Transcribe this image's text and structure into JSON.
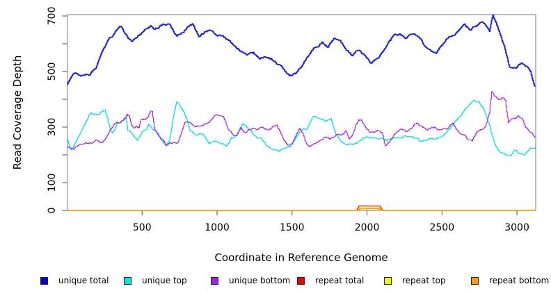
{
  "chart_data": {
    "type": "line",
    "title": "",
    "xlabel": "Coordinate in Reference Genome",
    "ylabel": "Read Coverage Depth",
    "xlim": [
      0,
      3125
    ],
    "ylim": [
      0,
      705
    ],
    "x_ticks": [
      500,
      1000,
      1500,
      2000,
      2500,
      3000
    ],
    "y_ticks": [
      0,
      100,
      200,
      300,
      400,
      500,
      600,
      700
    ],
    "y_tick_labels": [
      "0",
      "100",
      "",
      "300",
      "",
      "500",
      "",
      "700"
    ],
    "grid": false,
    "legend_position": "bottom",
    "box_color": "#7a7a7a",
    "tick_color": "#444444",
    "series": [
      {
        "name": "unique total",
        "swatch_color": "#0000e0",
        "line_color": "#1a1ae0",
        "line_width": 1.7,
        "noise": 7,
        "seed": 7,
        "points": [
          [
            0,
            455
          ],
          [
            40,
            500
          ],
          [
            90,
            490
          ],
          [
            140,
            495
          ],
          [
            190,
            510
          ],
          [
            230,
            560
          ],
          [
            280,
            610
          ],
          [
            330,
            645
          ],
          [
            357,
            657
          ],
          [
            390,
            630
          ],
          [
            431,
            607
          ],
          [
            470,
            630
          ],
          [
            500,
            637
          ],
          [
            530,
            650
          ],
          [
            560,
            660
          ],
          [
            584,
            655
          ],
          [
            620,
            665
          ],
          [
            650,
            672
          ],
          [
            682,
            668
          ],
          [
            728,
            627
          ],
          [
            760,
            640
          ],
          [
            802,
            662
          ],
          [
            835,
            670
          ],
          [
            877,
            620
          ],
          [
            920,
            640
          ],
          [
            960,
            650
          ],
          [
            1000,
            620
          ],
          [
            1040,
            625
          ],
          [
            1080,
            610
          ],
          [
            1120,
            590
          ],
          [
            1160,
            570
          ],
          [
            1200,
            555
          ],
          [
            1240,
            565
          ],
          [
            1280,
            545
          ],
          [
            1320,
            555
          ],
          [
            1360,
            545
          ],
          [
            1400,
            525
          ],
          [
            1440,
            510
          ],
          [
            1480,
            480
          ],
          [
            1520,
            490
          ],
          [
            1560,
            520
          ],
          [
            1600,
            555
          ],
          [
            1650,
            590
          ],
          [
            1700,
            610
          ],
          [
            1740,
            590
          ],
          [
            1780,
            615
          ],
          [
            1820,
            605
          ],
          [
            1860,
            575
          ],
          [
            1900,
            555
          ],
          [
            1940,
            580
          ],
          [
            1980,
            560
          ],
          [
            2020,
            530
          ],
          [
            2060,
            545
          ],
          [
            2100,
            565
          ],
          [
            2140,
            600
          ],
          [
            2180,
            625
          ],
          [
            2220,
            635
          ],
          [
            2260,
            615
          ],
          [
            2300,
            640
          ],
          [
            2340,
            630
          ],
          [
            2380,
            590
          ],
          [
            2420,
            570
          ],
          [
            2460,
            560
          ],
          [
            2500,
            590
          ],
          [
            2540,
            620
          ],
          [
            2570,
            632
          ],
          [
            2610,
            645
          ],
          [
            2650,
            660
          ],
          [
            2690,
            650
          ],
          [
            2720,
            665
          ],
          [
            2770,
            682
          ],
          [
            2816,
            645
          ],
          [
            2839,
            700
          ],
          [
            2870,
            657
          ],
          [
            2915,
            590
          ],
          [
            2950,
            515
          ],
          [
            2990,
            505
          ],
          [
            3030,
            525
          ],
          [
            3065,
            515
          ],
          [
            3090,
            500
          ],
          [
            3110,
            465
          ],
          [
            3121,
            450
          ]
        ]
      },
      {
        "name": "unique top",
        "swatch_color": "#00e5ee",
        "line_color": "#00dcec",
        "line_width": 1.1,
        "noise": 6,
        "seed": 13,
        "points": [
          [
            0,
            255
          ],
          [
            25,
            218
          ],
          [
            60,
            250
          ],
          [
            100,
            290
          ],
          [
            140,
            330
          ],
          [
            158,
            350
          ],
          [
            200,
            340
          ],
          [
            251,
            360
          ],
          [
            283,
            300
          ],
          [
            300,
            280
          ],
          [
            330,
            310
          ],
          [
            360,
            320
          ],
          [
            390,
            330
          ],
          [
            404,
            290
          ],
          [
            435,
            270
          ],
          [
            469,
            252
          ],
          [
            500,
            285
          ],
          [
            529,
            300
          ],
          [
            543,
            312
          ],
          [
            570,
            290
          ],
          [
            589,
            285
          ],
          [
            620,
            260
          ],
          [
            655,
            235
          ],
          [
            680,
            250
          ],
          [
            705,
            330
          ],
          [
            728,
            390
          ],
          [
            745,
            380
          ],
          [
            770,
            360
          ],
          [
            798,
            330
          ],
          [
            815,
            290
          ],
          [
            862,
            277
          ],
          [
            909,
            270
          ],
          [
            945,
            240
          ],
          [
            980,
            250
          ],
          [
            1020,
            240
          ],
          [
            1060,
            232
          ],
          [
            1085,
            255
          ],
          [
            1130,
            270
          ],
          [
            1170,
            310
          ],
          [
            1210,
            290
          ],
          [
            1250,
            265
          ],
          [
            1290,
            255
          ],
          [
            1330,
            230
          ],
          [
            1370,
            222
          ],
          [
            1410,
            212
          ],
          [
            1450,
            225
          ],
          [
            1490,
            230
          ],
          [
            1530,
            260
          ],
          [
            1570,
            290
          ],
          [
            1596,
            290
          ],
          [
            1640,
            335
          ],
          [
            1680,
            330
          ],
          [
            1720,
            325
          ],
          [
            1758,
            330
          ],
          [
            1790,
            275
          ],
          [
            1830,
            250
          ],
          [
            1870,
            245
          ],
          [
            1929,
            237
          ],
          [
            1970,
            260
          ],
          [
            2000,
            265
          ],
          [
            2050,
            265
          ],
          [
            2092,
            262
          ],
          [
            2129,
            248
          ],
          [
            2170,
            255
          ],
          [
            2210,
            262
          ],
          [
            2250,
            270
          ],
          [
            2300,
            268
          ],
          [
            2350,
            248
          ],
          [
            2400,
            252
          ],
          [
            2450,
            258
          ],
          [
            2500,
            262
          ],
          [
            2550,
            290
          ],
          [
            2593,
            325
          ],
          [
            2650,
            360
          ],
          [
            2709,
            395
          ],
          [
            2746,
            390
          ],
          [
            2780,
            360
          ],
          [
            2811,
            315
          ],
          [
            2848,
            245
          ],
          [
            2885,
            212
          ],
          [
            2920,
            200
          ],
          [
            2950,
            198
          ],
          [
            2987,
            215
          ],
          [
            3020,
            205
          ],
          [
            3050,
            200
          ],
          [
            3090,
            220
          ],
          [
            3121,
            228
          ]
        ]
      },
      {
        "name": "unique bottom",
        "swatch_color": "#a020f0",
        "line_color": "#a928ee",
        "line_width": 1.1,
        "noise": 6,
        "seed": 29,
        "points": [
          [
            0,
            230
          ],
          [
            40,
            222
          ],
          [
            80,
            240
          ],
          [
            120,
            245
          ],
          [
            158,
            245
          ],
          [
            190,
            250
          ],
          [
            230,
            248
          ],
          [
            260,
            262
          ],
          [
            306,
            307
          ],
          [
            329,
            320
          ],
          [
            350,
            315
          ],
          [
            375,
            325
          ],
          [
            399,
            345
          ],
          [
            413,
            340
          ],
          [
            427,
            307
          ],
          [
            445,
            295
          ],
          [
            460,
            300
          ],
          [
            478,
            297
          ],
          [
            491,
            325
          ],
          [
            520,
            330
          ],
          [
            538,
            335
          ],
          [
            555,
            360
          ],
          [
            566,
            355
          ],
          [
            580,
            300
          ],
          [
            612,
            262
          ],
          [
            640,
            245
          ],
          [
            660,
            228
          ],
          [
            682,
            240
          ],
          [
            710,
            242
          ],
          [
            740,
            245
          ],
          [
            784,
            320
          ],
          [
            800,
            325
          ],
          [
            830,
            315
          ],
          [
            862,
            307
          ],
          [
            900,
            310
          ],
          [
            925,
            315
          ],
          [
            960,
            330
          ],
          [
            990,
            353
          ],
          [
            1020,
            345
          ],
          [
            1039,
            340
          ],
          [
            1071,
            290
          ],
          [
            1099,
            275
          ],
          [
            1130,
            272
          ],
          [
            1155,
            300
          ],
          [
            1180,
            285
          ],
          [
            1210,
            290
          ],
          [
            1240,
            295
          ],
          [
            1270,
            290
          ],
          [
            1300,
            307
          ],
          [
            1330,
            295
          ],
          [
            1360,
            295
          ],
          [
            1396,
            307
          ],
          [
            1420,
            290
          ],
          [
            1442,
            257
          ],
          [
            1470,
            240
          ],
          [
            1500,
            242
          ],
          [
            1530,
            270
          ],
          [
            1549,
            290
          ],
          [
            1570,
            275
          ],
          [
            1596,
            237
          ],
          [
            1620,
            232
          ],
          [
            1650,
            240
          ],
          [
            1688,
            245
          ],
          [
            1720,
            262
          ],
          [
            1750,
            255
          ],
          [
            1795,
            270
          ],
          [
            1820,
            268
          ],
          [
            1841,
            275
          ],
          [
            1860,
            287
          ],
          [
            1880,
            260
          ],
          [
            1906,
            280
          ],
          [
            1925,
            310
          ],
          [
            1943,
            327
          ],
          [
            1957,
            325
          ],
          [
            1980,
            310
          ],
          [
            2013,
            282
          ],
          [
            2040,
            280
          ],
          [
            2073,
            285
          ],
          [
            2100,
            278
          ],
          [
            2120,
            232
          ],
          [
            2140,
            240
          ],
          [
            2170,
            265
          ],
          [
            2200,
            280
          ],
          [
            2230,
            295
          ],
          [
            2260,
            285
          ],
          [
            2300,
            295
          ],
          [
            2330,
            310
          ],
          [
            2360,
            300
          ],
          [
            2400,
            290
          ],
          [
            2430,
            300
          ],
          [
            2460,
            295
          ],
          [
            2500,
            290
          ],
          [
            2540,
            300
          ],
          [
            2570,
            312
          ],
          [
            2600,
            290
          ],
          [
            2630,
            275
          ],
          [
            2654,
            270
          ],
          [
            2680,
            255
          ],
          [
            2700,
            250
          ],
          [
            2730,
            280
          ],
          [
            2760,
            290
          ],
          [
            2790,
            300
          ],
          [
            2815,
            350
          ],
          [
            2830,
            425
          ],
          [
            2848,
            415
          ],
          [
            2880,
            400
          ],
          [
            2905,
            405
          ],
          [
            2922,
            395
          ],
          [
            2941,
            312
          ],
          [
            2960,
            325
          ],
          [
            2990,
            330
          ],
          [
            3010,
            337
          ],
          [
            3040,
            325
          ],
          [
            3056,
            302
          ],
          [
            3080,
            290
          ],
          [
            3103,
            277
          ],
          [
            3121,
            262
          ]
        ]
      },
      {
        "name": "repeat total",
        "swatch_color": "#ee0000",
        "line_color": "#ff1111",
        "line_width": 1.2,
        "noise": 0,
        "seed": 1,
        "points": [
          [
            0,
            0
          ],
          [
            1930,
            0
          ],
          [
            1945,
            16
          ],
          [
            2085,
            16
          ],
          [
            2100,
            0
          ],
          [
            3121,
            0
          ]
        ]
      },
      {
        "name": "repeat top",
        "swatch_color": "#f5f500",
        "line_color": "#ffee00",
        "line_width": 1.2,
        "noise": 0,
        "seed": 2,
        "points": [
          [
            0,
            0
          ],
          [
            1936,
            0
          ],
          [
            1950,
            10
          ],
          [
            2080,
            10
          ],
          [
            2094,
            0
          ],
          [
            3121,
            0
          ]
        ]
      },
      {
        "name": "repeat bottom",
        "swatch_color": "#ff9b00",
        "line_color": "#ff9b00",
        "line_width": 1.4,
        "noise": 0,
        "seed": 3,
        "points": [
          [
            0,
            0
          ],
          [
            1940,
            0
          ],
          [
            1953,
            6
          ],
          [
            2077,
            6
          ],
          [
            2090,
            0
          ],
          [
            3121,
            0
          ]
        ]
      }
    ]
  }
}
